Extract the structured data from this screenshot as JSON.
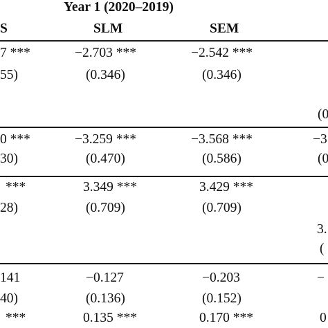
{
  "header": {
    "group": "Year 1 (2020–2019)",
    "col_ols_fragment": "S",
    "col_slm": "SLM",
    "col_sem": "SEM"
  },
  "rows": [
    {
      "left_value": "7 ***",
      "left_se": "55)",
      "slm_value": "−2.703 ***",
      "slm_se": "(0.346)",
      "sem_value": "−2.542 ***",
      "sem_se": "(0.346)",
      "right_fragment": "(0"
    },
    {
      "left_value": "0 ***",
      "left_se": "30)",
      "slm_value": "−3.259 ***",
      "slm_se": "(0.470)",
      "sem_value": "−3.568 ***",
      "sem_se": "(0.586)",
      "right_value_fragment": "−3",
      "right_se_fragment": "(0"
    },
    {
      "left_value": "***",
      "left_se": "28)",
      "slm_value": "3.349 ***",
      "slm_se": "(0.709)",
      "sem_value": "3.429 ***",
      "sem_se": "(0.709)",
      "right_value_fragment": "3.",
      "right_se_fragment": "("
    },
    {
      "left_value": "141",
      "left_se": "40)",
      "slm_value": "−0.127",
      "slm_se": "(0.136)",
      "sem_value": "−0.203",
      "sem_se": "(0.152)",
      "right_fragment": "−"
    },
    {
      "left_value": "***",
      "slm_value": "0.135 ***",
      "sem_value": "0.170 ***",
      "right_fragment": "0"
    }
  ]
}
